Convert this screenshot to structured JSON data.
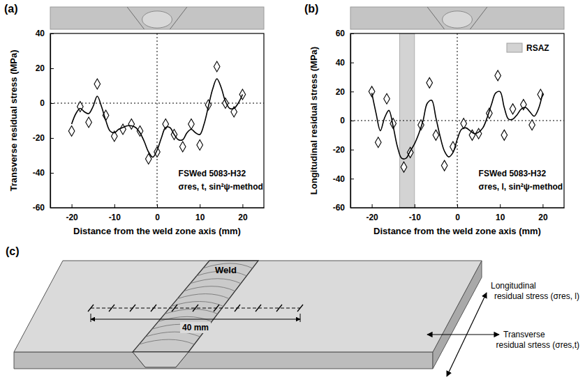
{
  "chart_data": [
    {
      "type": "scatter",
      "panel": "(a)",
      "x_label": "Distance from the weld zone axis (mm)",
      "y_label": "Transverse residual stress (MPa)",
      "annotations": [
        "FSWed 5083-H32",
        "σres, t, sin²ψ-method"
      ],
      "xlim": [
        -25,
        25
      ],
      "xticks": [
        -20,
        -10,
        0,
        10,
        20
      ],
      "ylim": [
        -60,
        40
      ],
      "yticks": [
        -60,
        -40,
        -20,
        0,
        20,
        40
      ],
      "reference_lines": {
        "x": [
          0
        ],
        "y": [
          0
        ]
      },
      "series": [
        {
          "type": "scatter",
          "marker": "diamond",
          "color": "#000000",
          "x": [
            -20,
            -18,
            -16,
            -14,
            -12,
            -10,
            -8,
            -6,
            -4,
            -2,
            0,
            2,
            4,
            6,
            8,
            10,
            12,
            14,
            16,
            18,
            20
          ],
          "values": [
            -16,
            -2,
            -11,
            11,
            -7,
            -19,
            -15,
            -12,
            -16,
            -32,
            -28,
            -12,
            -18,
            -25,
            -12,
            -24,
            -1,
            21,
            0,
            -5,
            5
          ]
        },
        {
          "type": "line",
          "line_style": "solid",
          "color": "#000000",
          "x": [
            -20,
            -19,
            -18,
            -17,
            -16,
            -15,
            -14,
            -13,
            -12,
            -11,
            -10,
            -9,
            -8,
            -7,
            -6,
            -5,
            -4,
            -3,
            -2,
            -1,
            0,
            1,
            2,
            3,
            4,
            5,
            6,
            7,
            8,
            9,
            10,
            11,
            12,
            13,
            14,
            15,
            16,
            17,
            18,
            19,
            20
          ],
          "values": [
            -12,
            -6,
            -3,
            -5,
            -6,
            -2,
            4,
            -2,
            -10,
            -16,
            -17,
            -15,
            -14,
            -13,
            -13,
            -14,
            -17,
            -22,
            -28,
            -31,
            -27,
            -20,
            -14,
            -14,
            -18,
            -21,
            -21,
            -17,
            -15,
            -17,
            -18,
            -12,
            -2,
            8,
            14,
            9,
            1,
            -3,
            -3,
            0,
            5
          ]
        }
      ]
    },
    {
      "type": "scatter",
      "panel": "(b)",
      "x_label": "Distance from the weld zone axis (mm)",
      "y_label": "Longitudinal residual stress (MPa)",
      "annotations": [
        "FSWed 5083-H32",
        "σres, l, sin²ψ-method"
      ],
      "xlim": [
        -25,
        25
      ],
      "xticks": [
        -20,
        -10,
        0,
        10,
        20
      ],
      "ylim": [
        -60,
        60
      ],
      "yticks": [
        -60,
        -40,
        -20,
        0,
        20,
        40,
        60
      ],
      "reference_lines": {
        "x": [
          0
        ],
        "y": [
          0
        ]
      },
      "legend": "upper right",
      "bands": [
        {
          "name": "RSAZ",
          "x": [
            -13.5,
            -10
          ],
          "color": "#d3d3d3"
        }
      ],
      "series": [
        {
          "type": "scatter",
          "marker": "diamond",
          "color": "#000000",
          "x": [
            -20,
            -18.5,
            -16.5,
            -15,
            -12.5,
            -11,
            -8.5,
            -6.5,
            -5,
            -3,
            -1,
            1.5,
            3.5,
            5,
            7.5,
            9.5,
            11,
            13,
            15.5,
            17.5,
            19.5
          ],
          "values": [
            20,
            -15,
            15,
            -2,
            -32,
            -22,
            -3,
            26,
            -10,
            -31,
            -18,
            -2,
            -10,
            -9,
            5,
            31,
            -10,
            8,
            11,
            -3,
            18
          ]
        },
        {
          "type": "line",
          "line_style": "solid",
          "color": "#000000",
          "x": [
            -20,
            -19,
            -18,
            -17,
            -16,
            -15,
            -14,
            -13,
            -12,
            -11,
            -10,
            -9,
            -8,
            -7,
            -6,
            -5,
            -4,
            -3,
            -2,
            -1,
            0,
            1,
            2,
            3,
            4,
            5,
            6,
            7,
            8,
            9,
            10,
            11,
            12,
            13,
            14,
            15,
            16,
            17,
            18,
            19,
            20
          ],
          "values": [
            19,
            5,
            -7,
            2,
            7,
            -4,
            -18,
            -26,
            -26,
            -21,
            -16,
            -9,
            0,
            12,
            14,
            2,
            -11,
            -21,
            -25,
            -22,
            -13,
            -6,
            -5,
            -7,
            -9,
            -8,
            -5,
            2,
            11,
            19,
            20,
            9,
            1,
            1,
            4,
            8,
            9,
            6,
            3,
            8,
            19
          ]
        }
      ]
    }
  ],
  "diagram": {
    "panel": "(c)",
    "labels": {
      "weld": "Weld",
      "span": "40 mm",
      "longitudinal": [
        "Longitudinal",
        "residual stress (σres, l)"
      ],
      "transverse": [
        "Transverse",
        "residual srtess (σres,t)"
      ]
    }
  }
}
